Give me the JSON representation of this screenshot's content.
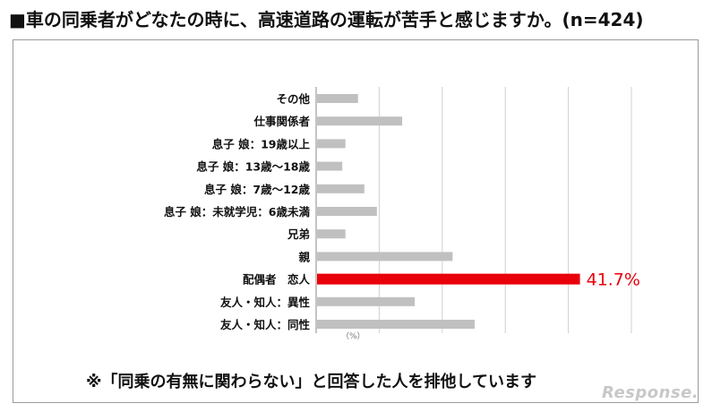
{
  "title": "■車の同乗者がどなたの時に、高速道路の運転が苦手と感じますか。(n=424)",
  "note": "※「同乗の有無に関わらない」と回答した人を排他しています",
  "watermark": "Response.",
  "colors": {
    "bar": "#c0c0c0",
    "highlight": "#e8000b",
    "grid": "#d0d0d0"
  },
  "chart_data": {
    "type": "bar",
    "orientation": "horizontal",
    "categories": [
      "その他",
      "仕事関係者",
      "息子 娘：19歳以上",
      "息子 娘：13歳〜18歳",
      "息子 娘：7歳〜12歳",
      "息子 娘：未就学児：6歳未満",
      "兄弟",
      "親",
      "配偶者　恋人",
      "友人・知人：異性",
      "友人・知人：同性"
    ],
    "values": [
      6.5,
      13.5,
      4.5,
      4.0,
      7.5,
      9.5,
      4.5,
      21.5,
      41.7,
      15.5,
      25.0
    ],
    "highlight_index": 8,
    "data_labels": {
      "8": "41.7%"
    },
    "unit_label": "（%）",
    "xlim": [
      0,
      50
    ],
    "grid": true
  }
}
